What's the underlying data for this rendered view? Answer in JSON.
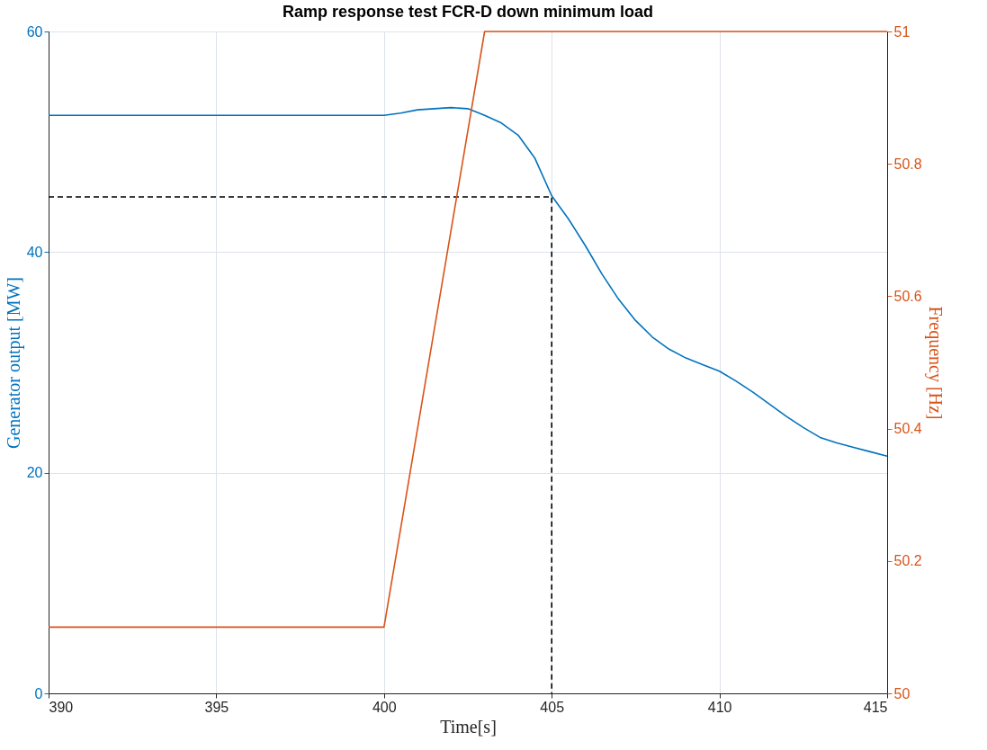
{
  "chart_data": {
    "type": "line",
    "title": "Ramp response test FCR-D down minimum load",
    "xlabel": "Time[s]",
    "ylabel": "Generator output [MW]",
    "y2label": "Frequency [Hz]",
    "xlim": [
      390,
      415
    ],
    "xticks": [
      390,
      395,
      400,
      405,
      410,
      415
    ],
    "ylim": [
      0,
      60
    ],
    "yticks": [
      0,
      20,
      40,
      60
    ],
    "y2lim": [
      50,
      51
    ],
    "y2ticks": [
      50,
      50.2,
      50.4,
      50.6,
      50.8,
      51
    ],
    "grid": true,
    "series": [
      {
        "color": "#0072bd",
        "x": [
          390,
          392,
          394,
          396,
          398,
          400,
          400.5,
          401,
          401.5,
          402,
          402.5,
          403,
          403.5,
          404,
          404.5,
          405,
          405.5,
          406,
          406.5,
          407,
          407.5,
          408,
          408.5,
          409,
          409.5,
          410,
          410.5,
          411,
          411.5,
          412,
          412.5,
          413,
          413.5,
          414,
          414.5,
          415
        ],
        "values": [
          52.4,
          52.4,
          52.4,
          52.4,
          52.4,
          52.4,
          52.6,
          52.9,
          53.0,
          53.1,
          53.0,
          52.4,
          51.7,
          50.6,
          48.5,
          45.1,
          43.0,
          40.6,
          38.0,
          35.7,
          33.8,
          32.3,
          31.2,
          30.4,
          29.8,
          29.2,
          28.3,
          27.3,
          26.2,
          25.1,
          24.1,
          23.2,
          22.7,
          22.3,
          21.9,
          21.5
        ]
      },
      {
        "color": "#000000",
        "line_style": "dashed",
        "x": [
          390,
          405,
          405
        ],
        "values": [
          45,
          45,
          0
        ]
      },
      {
        "color": "#d95319",
        "axis": "y2",
        "x": [
          390,
          400,
          403,
          415
        ],
        "values": [
          50.1,
          50.1,
          51,
          51
        ]
      }
    ]
  }
}
